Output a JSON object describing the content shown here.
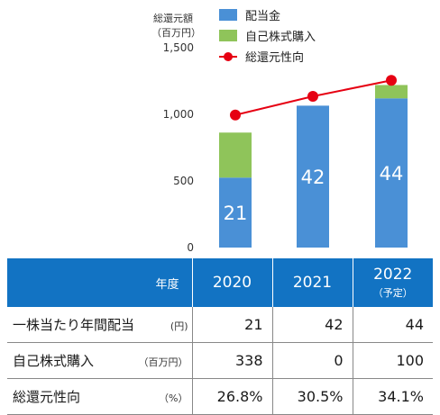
{
  "chart_data": {
    "type": "bar",
    "stacked": true,
    "categories": [
      "2020",
      "2021",
      "2022"
    ],
    "ylabel_line1": "総還元額",
    "ylabel_line2": "（百万円）",
    "ylim": [
      0,
      1500
    ],
    "yticks": [
      {
        "value": 0,
        "label": "0"
      },
      {
        "value": 500,
        "label": "500"
      },
      {
        "value": 1000,
        "label": "1,000"
      },
      {
        "value": 1500,
        "label": "1,500"
      }
    ],
    "series": [
      {
        "name": "配当金",
        "color": "#4a90d6",
        "values": [
          525,
          1065,
          1120
        ],
        "labels": [
          "21",
          "42",
          "44"
        ]
      },
      {
        "name": "自己株式購入",
        "color": "#8fc45a",
        "values": [
          338,
          0,
          100
        ]
      }
    ],
    "line_series": {
      "name": "総還元性向",
      "color": "#e60012",
      "values": [
        26.8,
        30.5,
        34.1
      ],
      "plot_values": [
        995,
        1135,
        1255
      ]
    },
    "grid": false,
    "legend_position": "top"
  },
  "table": {
    "header_label": "年度",
    "years": [
      {
        "label": "2020",
        "sub": ""
      },
      {
        "label": "2021",
        "sub": ""
      },
      {
        "label": "2022",
        "sub": "（予定）"
      }
    ],
    "rows": [
      {
        "label": "一株当たり年間配当",
        "unit": "(円)",
        "values": [
          "21",
          "42",
          "44"
        ]
      },
      {
        "label": "自己株式購入",
        "unit": "（百万円）",
        "values": [
          "338",
          "0",
          "100"
        ]
      },
      {
        "label": "総還元性向",
        "unit": "（%）",
        "values": [
          "26.8%",
          "30.5%",
          "34.1%"
        ]
      }
    ]
  }
}
